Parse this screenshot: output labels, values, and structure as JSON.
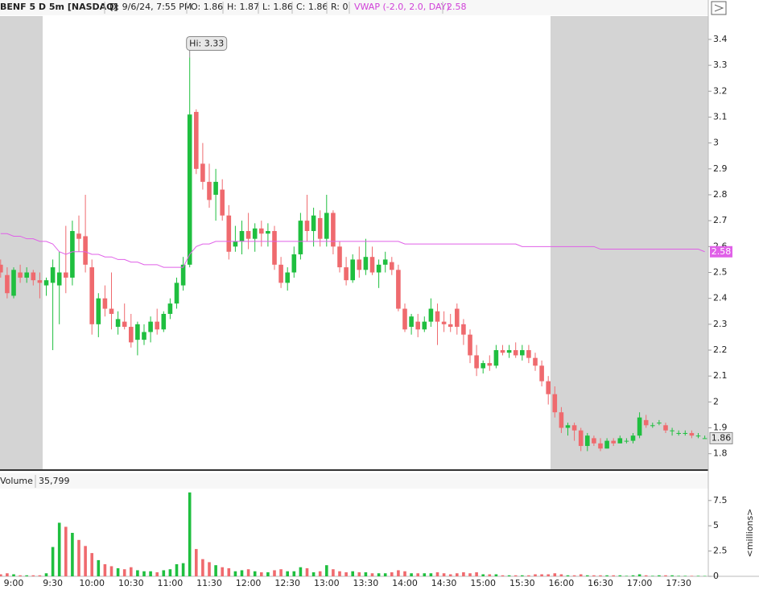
{
  "chart_data": {
    "type": "candlestick",
    "header": {
      "symbol": "BENF 5 D 5m [NASDAQ]",
      "date": "D: 9/6/24, 7:55 PM",
      "open": "O: 1.86",
      "high": "H: 1.87",
      "low": "L: 1.86",
      "close": "C: 1.86",
      "range": "R: 0"
    },
    "annotation": "Hi: 3.33",
    "categories": [
      null,
      null,
      "9:00",
      null,
      null,
      null,
      null,
      null,
      "9:30",
      null,
      null,
      null,
      null,
      null,
      "10:00",
      null,
      null,
      null,
      null,
      null,
      "10:30",
      null,
      null,
      null,
      null,
      null,
      "11:00",
      null,
      null,
      null,
      null,
      null,
      "11:30",
      null,
      null,
      null,
      null,
      null,
      "12:00",
      null,
      null,
      null,
      null,
      null,
      "12:30",
      null,
      null,
      null,
      null,
      null,
      "13:00",
      null,
      null,
      null,
      null,
      null,
      "13:30",
      null,
      null,
      null,
      null,
      null,
      "14:00",
      null,
      null,
      null,
      null,
      null,
      "14:30",
      null,
      null,
      null,
      null,
      null,
      "15:00",
      null,
      null,
      null,
      null,
      null,
      "15:30",
      null,
      null,
      null,
      null,
      null,
      "16:00",
      null,
      null,
      null,
      null,
      null,
      "16:30",
      null,
      null,
      null,
      null,
      null,
      "17:00",
      null,
      null,
      null,
      null,
      null,
      "17:30",
      null,
      null,
      null,
      null
    ],
    "open": [
      2.53,
      2.49,
      2.41,
      2.5,
      2.48,
      2.5,
      2.47,
      2.45,
      2.46,
      2.45,
      2.5,
      2.48,
      2.65,
      2.64,
      2.52,
      2.3,
      2.4,
      2.36,
      2.29,
      2.31,
      2.29,
      2.24,
      2.24,
      2.27,
      2.31,
      2.28,
      2.34,
      2.38,
      2.45,
      2.53,
      3.12,
      2.92,
      2.85,
      2.8,
      2.82,
      2.72,
      2.6,
      2.62,
      2.66,
      2.63,
      2.67,
      2.65,
      2.66,
      2.53,
      2.46,
      2.5,
      2.57,
      2.7,
      2.66,
      2.71,
      2.63,
      2.73,
      2.6,
      2.52,
      2.47,
      2.55,
      2.51,
      2.56,
      2.5,
      2.53,
      2.54,
      2.51,
      2.36,
      2.29,
      2.31,
      2.28,
      2.31,
      2.35,
      2.31,
      2.3,
      2.36,
      2.3,
      2.26,
      2.18,
      2.13,
      2.15,
      2.14,
      2.2,
      2.19,
      2.2,
      2.18,
      2.2,
      2.17,
      2.14,
      2.08,
      2.03,
      1.96,
      1.9,
      1.91,
      1.89,
      1.83,
      1.86,
      1.84,
      1.82,
      1.85,
      1.84,
      1.85,
      1.85,
      1.87,
      1.93,
      1.91,
      1.92,
      1.91,
      1.89,
      1.88,
      1.88,
      1.88,
      1.87,
      1.86
    ],
    "high": [
      2.55,
      2.52,
      2.52,
      2.53,
      2.52,
      2.51,
      2.5,
      2.48,
      2.55,
      2.58,
      2.68,
      2.7,
      2.72,
      2.8,
      2.55,
      2.42,
      2.45,
      2.5,
      2.35,
      2.38,
      2.34,
      2.31,
      2.3,
      2.33,
      2.36,
      2.35,
      2.4,
      2.48,
      2.56,
      3.33,
      3.13,
      3.0,
      2.92,
      2.9,
      2.86,
      2.76,
      2.68,
      2.7,
      2.73,
      2.69,
      2.7,
      2.69,
      2.68,
      2.56,
      2.52,
      2.6,
      2.73,
      2.8,
      2.75,
      2.74,
      2.8,
      2.74,
      2.62,
      2.56,
      2.57,
      2.6,
      2.63,
      2.6,
      2.55,
      2.58,
      2.56,
      2.53,
      2.38,
      2.34,
      2.34,
      2.33,
      2.4,
      2.38,
      2.35,
      2.34,
      2.38,
      2.32,
      2.28,
      2.22,
      2.16,
      2.18,
      2.22,
      2.22,
      2.22,
      2.23,
      2.22,
      2.22,
      2.19,
      2.16,
      2.1,
      2.06,
      1.98,
      1.92,
      1.92,
      1.9,
      1.88,
      1.87,
      1.86,
      1.86,
      1.86,
      1.87,
      1.86,
      1.88,
      1.96,
      1.95,
      1.92,
      1.93,
      1.92,
      1.9,
      1.89,
      1.89,
      1.89,
      1.88,
      1.87
    ],
    "low": [
      2.48,
      2.4,
      2.4,
      2.46,
      2.46,
      2.45,
      2.4,
      2.41,
      2.2,
      2.3,
      2.42,
      2.45,
      2.58,
      2.5,
      2.26,
      2.25,
      2.33,
      2.28,
      2.26,
      2.28,
      2.21,
      2.18,
      2.22,
      2.23,
      2.26,
      2.27,
      2.32,
      2.36,
      2.43,
      2.52,
      2.88,
      2.82,
      2.75,
      2.7,
      2.7,
      2.55,
      2.58,
      2.57,
      2.59,
      2.58,
      2.6,
      2.6,
      2.51,
      2.44,
      2.43,
      2.48,
      2.55,
      2.62,
      2.6,
      2.6,
      2.6,
      2.57,
      2.5,
      2.45,
      2.46,
      2.48,
      2.49,
      2.49,
      2.44,
      2.5,
      2.49,
      2.35,
      2.27,
      2.26,
      2.25,
      2.27,
      2.29,
      2.22,
      2.27,
      2.27,
      2.26,
      2.22,
      2.15,
      2.1,
      2.11,
      2.12,
      2.13,
      2.18,
      2.17,
      2.17,
      2.16,
      2.15,
      2.12,
      2.06,
      1.99,
      1.94,
      1.88,
      1.87,
      1.85,
      1.81,
      1.81,
      1.83,
      1.81,
      1.82,
      1.83,
      1.84,
      1.84,
      1.84,
      1.86,
      1.9,
      1.9,
      1.91,
      1.88,
      1.87,
      1.87,
      1.87,
      1.86,
      1.86,
      1.86
    ],
    "close": [
      2.5,
      2.42,
      2.51,
      2.48,
      2.5,
      2.47,
      2.46,
      2.47,
      2.52,
      2.5,
      2.48,
      2.66,
      2.63,
      2.53,
      2.3,
      2.4,
      2.36,
      2.34,
      2.32,
      2.29,
      2.23,
      2.3,
      2.27,
      2.31,
      2.28,
      2.34,
      2.38,
      2.46,
      2.53,
      3.11,
      2.9,
      2.85,
      2.78,
      2.85,
      2.72,
      2.58,
      2.62,
      2.66,
      2.63,
      2.67,
      2.65,
      2.66,
      2.53,
      2.46,
      2.5,
      2.57,
      2.7,
      2.66,
      2.72,
      2.63,
      2.73,
      2.6,
      2.52,
      2.47,
      2.55,
      2.51,
      2.56,
      2.5,
      2.53,
      2.55,
      2.51,
      2.36,
      2.28,
      2.33,
      2.28,
      2.31,
      2.36,
      2.31,
      2.3,
      2.29,
      2.29,
      2.26,
      2.18,
      2.13,
      2.15,
      2.14,
      2.2,
      2.19,
      2.2,
      2.18,
      2.2,
      2.17,
      2.14,
      2.08,
      2.03,
      1.96,
      1.9,
      1.91,
      1.89,
      1.83,
      1.87,
      1.84,
      1.82,
      1.85,
      1.84,
      1.86,
      1.85,
      1.87,
      1.94,
      1.91,
      1.91,
      1.92,
      1.89,
      1.89,
      1.88,
      1.88,
      1.87,
      1.87,
      1.86
    ],
    "color_up": "#1fbf3f",
    "color_down": "#ef6a6e",
    "vwap": {
      "name": "VWAP (-2.0, 2.0, DAY)",
      "color": "#e060e8",
      "values": [
        2.65,
        2.65,
        2.64,
        2.64,
        2.63,
        2.63,
        2.62,
        2.62,
        2.61,
        2.58,
        2.57,
        2.58,
        2.58,
        2.58,
        2.57,
        2.57,
        2.56,
        2.56,
        2.55,
        2.55,
        2.54,
        2.54,
        2.53,
        2.53,
        2.53,
        2.52,
        2.52,
        2.52,
        2.52,
        2.57,
        2.6,
        2.61,
        2.61,
        2.62,
        2.62,
        2.62,
        2.62,
        2.62,
        2.62,
        2.62,
        2.62,
        2.62,
        2.62,
        2.62,
        2.62,
        2.62,
        2.62,
        2.62,
        2.62,
        2.62,
        2.62,
        2.62,
        2.62,
        2.62,
        2.62,
        2.62,
        2.62,
        2.62,
        2.62,
        2.62,
        2.62,
        2.62,
        2.61,
        2.61,
        2.61,
        2.61,
        2.61,
        2.61,
        2.61,
        2.61,
        2.61,
        2.61,
        2.61,
        2.61,
        2.61,
        2.61,
        2.61,
        2.61,
        2.61,
        2.61,
        2.6,
        2.6,
        2.6,
        2.6,
        2.6,
        2.6,
        2.6,
        2.6,
        2.6,
        2.6,
        2.6,
        2.6,
        2.59,
        2.59,
        2.59,
        2.59,
        2.59,
        2.59,
        2.59,
        2.59,
        2.59,
        2.59,
        2.59,
        2.59,
        2.59,
        2.59,
        2.59,
        2.59,
        2.58
      ]
    },
    "ylim": [
      1.74,
      3.49
    ],
    "yticks": [
      1.8,
      1.9,
      2,
      2.1,
      2.2,
      2.3,
      2.4,
      2.5,
      2.6,
      2.7,
      2.8,
      2.9,
      3,
      3.1,
      3.2,
      3.3,
      3.4
    ],
    "volume": {
      "title": "Volume",
      "current": "35,799",
      "axis_label": "<millions>",
      "values": [
        0.2,
        0.3,
        0.2,
        0.1,
        0.1,
        0.1,
        0.1,
        0.3,
        2.9,
        5.3,
        4.9,
        4.3,
        3.6,
        3.0,
        2.3,
        1.6,
        1.2,
        1.0,
        0.8,
        0.7,
        0.9,
        0.6,
        0.5,
        0.5,
        0.4,
        0.6,
        0.7,
        1.2,
        1.3,
        8.3,
        2.7,
        1.7,
        1.4,
        1.1,
        0.9,
        0.8,
        0.5,
        0.6,
        0.7,
        0.5,
        0.4,
        0.4,
        0.6,
        0.7,
        0.5,
        0.5,
        0.9,
        0.8,
        0.4,
        0.5,
        1.1,
        0.7,
        0.5,
        0.4,
        0.5,
        0.4,
        0.4,
        0.3,
        0.3,
        0.3,
        0.4,
        0.6,
        0.5,
        0.3,
        0.3,
        0.3,
        0.3,
        0.4,
        0.3,
        0.2,
        0.3,
        0.4,
        0.3,
        0.4,
        0.2,
        0.2,
        0.2,
        0.1,
        0.1,
        0.1,
        0.1,
        0.1,
        0.2,
        0.2,
        0.2,
        0.3,
        0.2,
        0.1,
        0.1,
        0.2,
        0.1,
        0.1,
        0.1,
        0.1,
        0.1,
        0.1,
        0.05,
        0.1,
        0.2,
        0.1,
        0.05,
        0.1,
        0.1,
        0.1,
        0.05,
        0.05,
        0.05,
        0.05,
        0.04
      ],
      "ylim": [
        0,
        8.6
      ],
      "yticks": [
        0,
        2.5,
        5,
        7.5
      ]
    }
  }
}
